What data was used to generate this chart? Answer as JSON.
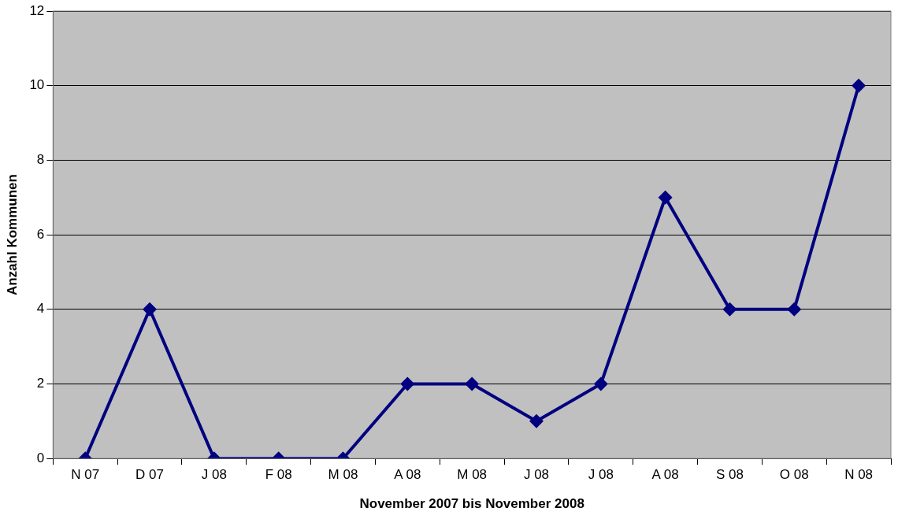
{
  "chart_data": {
    "type": "line",
    "xlabel": "November 2007 bis November 2008",
    "ylabel": "Anzahl Kommunen",
    "categories": [
      "N 07",
      "D 07",
      "J 08",
      "F 08",
      "M 08",
      "A 08",
      "M 08",
      "J 08",
      "J 08",
      "A 08",
      "S 08",
      "O 08",
      "N 08"
    ],
    "series": [
      {
        "color": "#000080",
        "values": [
          0,
          4,
          0,
          0,
          0,
          2,
          2,
          1,
          2,
          7,
          4,
          4,
          10
        ]
      }
    ],
    "ylim": [
      0,
      12
    ],
    "yticks": [
      0,
      2,
      4,
      6,
      8,
      10,
      12
    ],
    "grid": "y",
    "legend": false,
    "marker": "diamond",
    "line_style": "solid"
  }
}
